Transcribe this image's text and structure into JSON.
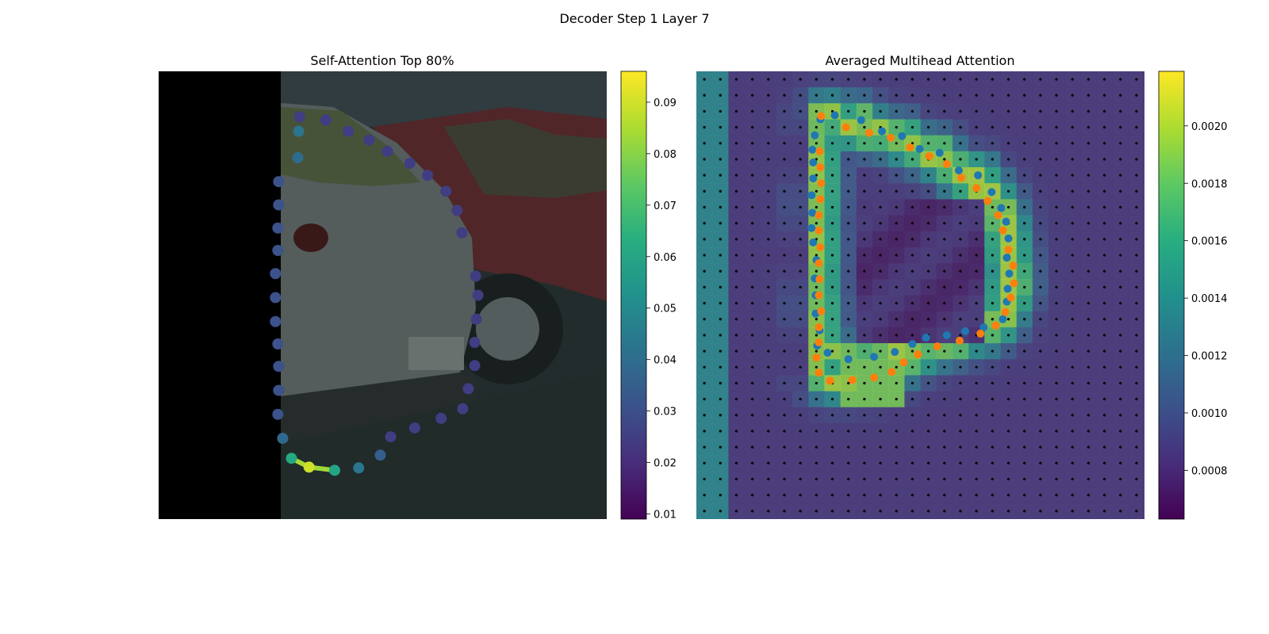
{
  "figure": {
    "suptitle": "Decoder Step 1 Layer 7"
  },
  "chart_data": [
    {
      "type": "scatter",
      "title": "Self-Attention Top 80%",
      "xlabel": "",
      "ylabel": "",
      "xlim": [
        0,
        56
      ],
      "ylim": [
        56,
        0
      ],
      "axes_visible": false,
      "background": "photo of parked grey and red cars; left side black padding",
      "colormap": "viridis",
      "colorbar": {
        "min": 0.009,
        "max": 0.096,
        "ticks": [
          "0.01",
          "0.02",
          "0.03",
          "0.04",
          "0.05",
          "0.06",
          "0.07",
          "0.08",
          "0.09"
        ]
      },
      "points": [
        {
          "x": 17.5,
          "y": 7.5,
          "w": 0.043
        },
        {
          "x": 17.4,
          "y": 10.8,
          "w": 0.04
        },
        {
          "x": 15.0,
          "y": 13.8,
          "w": 0.031
        },
        {
          "x": 15.0,
          "y": 16.7,
          "w": 0.031
        },
        {
          "x": 14.9,
          "y": 19.6,
          "w": 0.031
        },
        {
          "x": 14.9,
          "y": 22.4,
          "w": 0.031
        },
        {
          "x": 14.6,
          "y": 25.3,
          "w": 0.031
        },
        {
          "x": 14.6,
          "y": 28.3,
          "w": 0.031
        },
        {
          "x": 14.6,
          "y": 31.3,
          "w": 0.031
        },
        {
          "x": 14.9,
          "y": 34.1,
          "w": 0.031
        },
        {
          "x": 15.0,
          "y": 36.9,
          "w": 0.031
        },
        {
          "x": 15.0,
          "y": 39.9,
          "w": 0.031
        },
        {
          "x": 14.9,
          "y": 42.9,
          "w": 0.031
        },
        {
          "x": 15.5,
          "y": 45.9,
          "w": 0.039
        },
        {
          "x": 16.6,
          "y": 48.4,
          "w": 0.062
        },
        {
          "x": 18.8,
          "y": 49.5,
          "w": 0.09
        },
        {
          "x": 22.0,
          "y": 49.9,
          "w": 0.06
        },
        {
          "x": 25.0,
          "y": 49.6,
          "w": 0.043
        },
        {
          "x": 27.7,
          "y": 48.0,
          "w": 0.035
        },
        {
          "x": 29.0,
          "y": 45.7,
          "w": 0.025
        },
        {
          "x": 32.0,
          "y": 44.6,
          "w": 0.025
        },
        {
          "x": 35.3,
          "y": 43.4,
          "w": 0.025
        },
        {
          "x": 38.0,
          "y": 42.2,
          "w": 0.025
        },
        {
          "x": 38.7,
          "y": 39.7,
          "w": 0.025
        },
        {
          "x": 39.5,
          "y": 36.8,
          "w": 0.025
        },
        {
          "x": 39.5,
          "y": 33.9,
          "w": 0.025
        },
        {
          "x": 39.7,
          "y": 31.0,
          "w": 0.025
        },
        {
          "x": 39.9,
          "y": 28.0,
          "w": 0.025
        },
        {
          "x": 39.6,
          "y": 25.6,
          "w": 0.025
        },
        {
          "x": 37.9,
          "y": 20.2,
          "w": 0.025
        },
        {
          "x": 37.3,
          "y": 17.4,
          "w": 0.025
        },
        {
          "x": 35.9,
          "y": 15.0,
          "w": 0.025
        },
        {
          "x": 33.6,
          "y": 13.0,
          "w": 0.025
        },
        {
          "x": 31.4,
          "y": 11.5,
          "w": 0.025
        },
        {
          "x": 28.6,
          "y": 10.0,
          "w": 0.025
        },
        {
          "x": 26.3,
          "y": 8.6,
          "w": 0.025
        },
        {
          "x": 23.7,
          "y": 7.5,
          "w": 0.025
        },
        {
          "x": 20.9,
          "y": 6.1,
          "w": 0.025
        },
        {
          "x": 17.6,
          "y": 5.7,
          "w": 0.025
        }
      ],
      "highlight_segments": [
        [
          14,
          15
        ],
        [
          15,
          16
        ]
      ]
    },
    {
      "type": "heatmap",
      "title": "Averaged Multihead Attention",
      "xlabel": "",
      "ylabel": "",
      "axes_visible": false,
      "grid_size": [
        28,
        28
      ],
      "colormap": "viridis",
      "colorbar": {
        "min": 0.00063,
        "max": 0.00219,
        "ticks": [
          "0.0008",
          "0.0010",
          "0.0012",
          "0.0014",
          "0.0016",
          "0.0018",
          "0.0020"
        ]
      },
      "series": [
        {
          "name": "blue",
          "color": "#1f77b4",
          "points": [
            [
              15.5,
              6.0
            ],
            [
              17.3,
              5.5
            ],
            [
              20.6,
              6.1
            ],
            [
              23.2,
              7.5
            ],
            [
              25.7,
              8.1
            ],
            [
              27.9,
              9.7
            ],
            [
              30.4,
              10.2
            ],
            [
              32.8,
              12.4
            ],
            [
              35.2,
              13.0
            ],
            [
              36.9,
              15.1
            ],
            [
              38.1,
              17.1
            ],
            [
              38.7,
              18.8
            ],
            [
              39.0,
              20.9
            ],
            [
              38.8,
              23.3
            ],
            [
              39.1,
              25.3
            ],
            [
              38.9,
              27.2
            ],
            [
              38.8,
              28.8
            ],
            [
              38.3,
              31.0
            ],
            [
              35.9,
              32.0
            ],
            [
              33.6,
              32.5
            ],
            [
              31.3,
              33.0
            ],
            [
              28.7,
              33.3
            ],
            [
              27.0,
              34.1
            ],
            [
              24.8,
              35.1
            ],
            [
              22.2,
              35.7
            ],
            [
              19.0,
              36.0
            ],
            [
              16.4,
              35.2
            ],
            [
              15.1,
              34.3
            ],
            [
              15.4,
              32.4
            ],
            [
              14.9,
              30.3
            ],
            [
              14.9,
              28.0
            ],
            [
              14.8,
              25.9
            ],
            [
              15.0,
              23.6
            ],
            [
              14.6,
              21.4
            ],
            [
              14.4,
              19.6
            ],
            [
              14.5,
              17.7
            ],
            [
              14.4,
              15.5
            ],
            [
              14.6,
              13.4
            ],
            [
              14.6,
              11.4
            ],
            [
              14.5,
              9.8
            ],
            [
              14.8,
              8.0
            ]
          ]
        },
        {
          "name": "orange",
          "color": "#ff7f0e",
          "points": [
            [
              15.6,
              5.6
            ],
            [
              18.7,
              7.0
            ],
            [
              21.6,
              7.7
            ],
            [
              24.3,
              8.3
            ],
            [
              26.7,
              9.5
            ],
            [
              29.1,
              10.6
            ],
            [
              31.3,
              11.6
            ],
            [
              33.1,
              13.3
            ],
            [
              35.0,
              14.6
            ],
            [
              36.4,
              16.2
            ],
            [
              37.7,
              18.0
            ],
            [
              38.3,
              19.9
            ],
            [
              39.0,
              22.3
            ],
            [
              39.6,
              24.3
            ],
            [
              39.7,
              26.5
            ],
            [
              39.3,
              28.3
            ],
            [
              38.6,
              30.1
            ],
            [
              37.4,
              31.8
            ],
            [
              35.5,
              32.8
            ],
            [
              32.9,
              33.7
            ],
            [
              30.1,
              34.4
            ],
            [
              27.7,
              35.4
            ],
            [
              25.9,
              36.4
            ],
            [
              24.4,
              37.6
            ],
            [
              22.2,
              38.3
            ],
            [
              19.5,
              38.6
            ],
            [
              16.7,
              38.7
            ],
            [
              15.3,
              37.7
            ],
            [
              15.0,
              35.8
            ],
            [
              15.3,
              33.9
            ],
            [
              15.3,
              32.0
            ],
            [
              15.6,
              30.0
            ],
            [
              15.3,
              28.0
            ],
            [
              15.4,
              26.0
            ],
            [
              15.3,
              24.0
            ],
            [
              15.5,
              22.0
            ],
            [
              15.3,
              19.9
            ],
            [
              15.3,
              18.0
            ],
            [
              15.5,
              16.0
            ],
            [
              15.6,
              14.0
            ],
            [
              15.5,
              12.0
            ],
            [
              15.4,
              10.0
            ]
          ]
        }
      ],
      "grid_markers": "black dot at every cell center"
    }
  ]
}
